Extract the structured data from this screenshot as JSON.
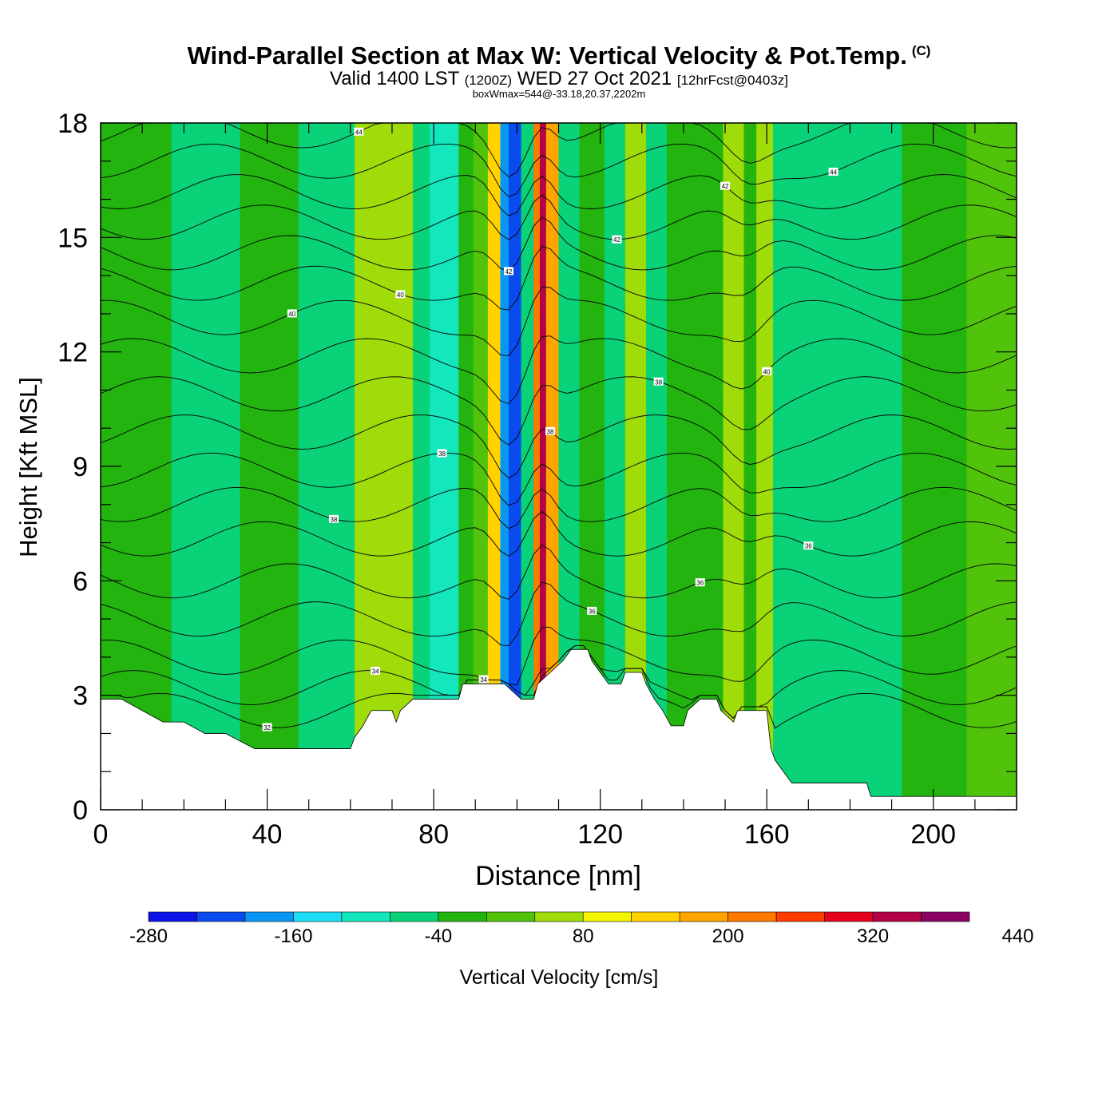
{
  "header": {
    "title": "Wind-Parallel Section at Max W: Vertical Velocity & Pot.Temp.",
    "copyright": "(C)",
    "valid_prefix": "Valid 1400 LST",
    "valid_utc": "(1200Z)",
    "valid_date": "WED 27 Oct 2021",
    "forecast": "[12hrFcst@0403z]",
    "box_info": "boxWmax=544@-33.18,20.37,2202m"
  },
  "chart_data": {
    "type": "heatmap",
    "xlabel": "Distance [nm]",
    "ylabel": "Height [Kft MSL]",
    "xlim": [
      0,
      220
    ],
    "ylim": [
      0,
      18
    ],
    "x_ticks": [
      0,
      40,
      80,
      120,
      160,
      200
    ],
    "y_ticks": [
      0,
      3,
      6,
      9,
      12,
      15,
      18
    ],
    "colorbar": {
      "label": "Vertical Velocity [cm/s]",
      "tick_labels": [
        "-280",
        "-160",
        "-40",
        "80",
        "200",
        "320",
        "440"
      ],
      "colors": [
        "#0a14e6",
        "#0a4bf0",
        "#0a96f5",
        "#1edcf5",
        "#14e6be",
        "#0ad278",
        "#23b40f",
        "#50c30a",
        "#a0dc0a",
        "#f5f500",
        "#ffd200",
        "#ffa500",
        "#ff7800",
        "#ff3c00",
        "#e6001e",
        "#b40046",
        "#8c0064"
      ]
    },
    "velocity_columns": [
      {
        "x": 12,
        "w": -10
      },
      {
        "x": 22,
        "w": -25
      },
      {
        "x": 45,
        "w": -15
      },
      {
        "x": 50,
        "w": -45
      },
      {
        "x": 72,
        "w": 85
      },
      {
        "x": 78,
        "w": -70
      },
      {
        "x": 80,
        "w": -110
      },
      {
        "x": 84,
        "w": -90
      },
      {
        "x": 88,
        "w": 20
      },
      {
        "x": 91,
        "w": 60
      },
      {
        "x": 95,
        "w": 200
      },
      {
        "x": 97,
        "w": -180
      },
      {
        "x": 99,
        "w": -260
      },
      {
        "x": 103,
        "w": -60
      },
      {
        "x": 105,
        "w": 300
      },
      {
        "x": 106,
        "w": 440
      },
      {
        "x": 108,
        "w": 250
      },
      {
        "x": 112,
        "w": -45
      },
      {
        "x": 118,
        "w": 25
      },
      {
        "x": 124,
        "w": -40
      },
      {
        "x": 128,
        "w": 95
      },
      {
        "x": 134,
        "w": -45
      },
      {
        "x": 138,
        "w": 20
      },
      {
        "x": 146,
        "w": -10
      },
      {
        "x": 153,
        "w": 95
      },
      {
        "x": 156,
        "w": -20
      },
      {
        "x": 159,
        "w": 80
      },
      {
        "x": 164,
        "w": -35
      },
      {
        "x": 170,
        "w": -30
      },
      {
        "x": 185,
        "w": -40
      },
      {
        "x": 200,
        "w": -20
      },
      {
        "x": 216,
        "w": 60
      }
    ],
    "terrain": [
      [
        0,
        2.9
      ],
      [
        5,
        2.9
      ],
      [
        10,
        2.6
      ],
      [
        15,
        2.3
      ],
      [
        20,
        2.3
      ],
      [
        25,
        2.0
      ],
      [
        30,
        2.0
      ],
      [
        37,
        1.6
      ],
      [
        45,
        1.6
      ],
      [
        50,
        1.6
      ],
      [
        60,
        1.6
      ],
      [
        61,
        1.9
      ],
      [
        63,
        2.2
      ],
      [
        65,
        2.6
      ],
      [
        70,
        2.6
      ],
      [
        71,
        2.3
      ],
      [
        72,
        2.6
      ],
      [
        75,
        2.9
      ],
      [
        80,
        2.9
      ],
      [
        86,
        2.9
      ],
      [
        87,
        3.3
      ],
      [
        97,
        3.3
      ],
      [
        101,
        2.9
      ],
      [
        104,
        2.9
      ],
      [
        105,
        3.3
      ],
      [
        108,
        3.6
      ],
      [
        111,
        3.9
      ],
      [
        113,
        4.2
      ],
      [
        117,
        4.2
      ],
      [
        118,
        3.9
      ],
      [
        120,
        3.6
      ],
      [
        122,
        3.3
      ],
      [
        125,
        3.3
      ],
      [
        126,
        3.6
      ],
      [
        130,
        3.6
      ],
      [
        131,
        3.3
      ],
      [
        133,
        2.9
      ],
      [
        135,
        2.6
      ],
      [
        137,
        2.2
      ],
      [
        140,
        2.2
      ],
      [
        141,
        2.6
      ],
      [
        144,
        2.9
      ],
      [
        148,
        2.9
      ],
      [
        149,
        2.6
      ],
      [
        152,
        2.3
      ],
      [
        153,
        2.6
      ],
      [
        160,
        2.6
      ],
      [
        161,
        1.6
      ],
      [
        162,
        1.3
      ],
      [
        164,
        1.0
      ],
      [
        166,
        0.7
      ],
      [
        175,
        0.7
      ],
      [
        184,
        0.7
      ],
      [
        185,
        0.35
      ],
      [
        220,
        0.35
      ]
    ],
    "theta_contours": [
      {
        "base": 2.6,
        "label": "32"
      },
      {
        "base": 3.2,
        "label": "34"
      },
      {
        "base": 4.0,
        "label": "34"
      },
      {
        "base": 5.0,
        "label": "36"
      },
      {
        "base": 6.0,
        "label": "36"
      },
      {
        "base": 7.1,
        "label": "36"
      },
      {
        "base": 8.0,
        "label": "38"
      },
      {
        "base": 8.9,
        "label": "38"
      },
      {
        "base": 9.9,
        "label": "38"
      },
      {
        "base": 10.9,
        "label": "38"
      },
      {
        "base": 11.9,
        "label": "40"
      },
      {
        "base": 12.9,
        "label": "40"
      },
      {
        "base": 13.8,
        "label": "40"
      },
      {
        "base": 14.6,
        "label": "42"
      },
      {
        "base": 15.4,
        "label": "42"
      },
      {
        "base": 16.2,
        "label": "42"
      },
      {
        "base": 17.0,
        "label": "44"
      },
      {
        "base": 17.8,
        "label": "44"
      }
    ]
  }
}
